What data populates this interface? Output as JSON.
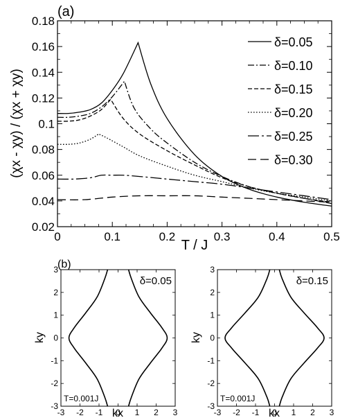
{
  "chart_data": [
    {
      "panel_label": "(a)",
      "type": "line",
      "xlabel": "T / J",
      "ylabel": "(χx - χy) / (χx + χy)",
      "xlim": [
        0,
        0.5
      ],
      "ylim": [
        0.02,
        0.18
      ],
      "xticks": [
        0,
        0.1,
        0.2,
        0.3,
        0.4,
        0.5
      ],
      "xtick_labels": [
        "0",
        "0.1",
        "0.2",
        "0.3",
        "0.4",
        "0.5"
      ],
      "yticks": [
        0.02,
        0.04,
        0.06,
        0.08,
        0.1,
        0.12,
        0.14,
        0.16,
        0.18
      ],
      "ytick_labels": [
        "0.02",
        "0.04",
        "0.06",
        "0.08",
        "0.1",
        "0.12",
        "0.14",
        "0.16",
        "0.18"
      ],
      "legend_position": "top-right",
      "series": [
        {
          "name": "δ=0.05",
          "dash": "solid",
          "x": [
            0,
            0.02,
            0.04,
            0.06,
            0.08,
            0.1,
            0.12,
            0.147,
            0.17,
            0.2,
            0.25,
            0.3,
            0.35,
            0.4,
            0.45,
            0.5
          ],
          "y": [
            0.108,
            0.108,
            0.109,
            0.111,
            0.116,
            0.126,
            0.139,
            0.163,
            0.131,
            0.104,
            0.076,
            0.059,
            0.049,
            0.043,
            0.039,
            0.036
          ]
        },
        {
          "name": "δ=0.10",
          "dash": "dashdot",
          "x": [
            0,
            0.02,
            0.04,
            0.06,
            0.08,
            0.1,
            0.122,
            0.14,
            0.17,
            0.2,
            0.25,
            0.3,
            0.35,
            0.4,
            0.45,
            0.5
          ],
          "y": [
            0.105,
            0.105,
            0.106,
            0.108,
            0.113,
            0.121,
            0.133,
            0.112,
            0.096,
            0.085,
            0.07,
            0.059,
            0.051,
            0.046,
            0.042,
            0.038
          ]
        },
        {
          "name": "δ=0.15",
          "dash": "dash",
          "x": [
            0,
            0.02,
            0.04,
            0.06,
            0.08,
            0.097,
            0.12,
            0.15,
            0.2,
            0.25,
            0.3,
            0.35,
            0.4,
            0.45,
            0.5
          ],
          "y": [
            0.102,
            0.102,
            0.103,
            0.106,
            0.111,
            0.119,
            0.104,
            0.092,
            0.079,
            0.068,
            0.058,
            0.051,
            0.046,
            0.042,
            0.039
          ]
        },
        {
          "name": "δ=0.20",
          "dash": "dot",
          "x": [
            0,
            0.02,
            0.04,
            0.06,
            0.075,
            0.09,
            0.12,
            0.15,
            0.2,
            0.25,
            0.3,
            0.35,
            0.4,
            0.45,
            0.5
          ],
          "y": [
            0.084,
            0.084,
            0.085,
            0.088,
            0.092,
            0.089,
            0.082,
            0.075,
            0.067,
            0.06,
            0.055,
            0.05,
            0.046,
            0.043,
            0.04
          ]
        },
        {
          "name": "δ=0.25",
          "dash": "longdashdot",
          "x": [
            0,
            0.03,
            0.06,
            0.08,
            0.1,
            0.12,
            0.15,
            0.2,
            0.25,
            0.3,
            0.35,
            0.4,
            0.45,
            0.5
          ],
          "y": [
            0.057,
            0.057,
            0.058,
            0.06,
            0.06,
            0.06,
            0.059,
            0.057,
            0.055,
            0.053,
            0.05,
            0.047,
            0.044,
            0.041
          ]
        },
        {
          "name": "δ=0.30",
          "dash": "longdash",
          "x": [
            0,
            0.05,
            0.1,
            0.15,
            0.2,
            0.25,
            0.3,
            0.35,
            0.4,
            0.45,
            0.5
          ],
          "y": [
            0.041,
            0.041,
            0.043,
            0.044,
            0.044,
            0.044,
            0.043,
            0.042,
            0.041,
            0.04,
            0.039
          ]
        }
      ]
    },
    {
      "panel_label": "(b)",
      "type": "line",
      "xlabel": "kx",
      "ylabel": "ky",
      "xlim": [
        -3,
        3
      ],
      "ylim": [
        -3,
        3
      ],
      "xticks": [
        -3,
        -2,
        -1,
        0,
        1,
        2,
        3
      ],
      "yticks": [
        -3,
        -2,
        -1,
        0,
        1,
        2,
        3
      ],
      "annotation_delta": "δ=0.05",
      "annotation_T": "T=0.001J",
      "series": [
        {
          "name": "",
          "x": [
            0.55,
            0.7,
            1.1,
            1.7,
            2.3,
            2.58,
            2.3,
            1.7,
            1.1,
            0.7,
            0.55
          ],
          "y": [
            -3.14,
            -2.6,
            -1.8,
            -1.1,
            -0.45,
            0,
            0.45,
            1.1,
            1.8,
            2.6,
            3.14
          ]
        },
        {
          "name": "",
          "x": [
            -0.55,
            -0.7,
            -1.1,
            -1.7,
            -2.3,
            -2.58,
            -2.3,
            -1.7,
            -1.1,
            -0.7,
            -0.55
          ],
          "y": [
            -3.14,
            -2.6,
            -1.8,
            -1.1,
            -0.45,
            0,
            0.45,
            1.1,
            1.8,
            2.6,
            3.14
          ]
        }
      ]
    },
    {
      "type": "line",
      "xlabel": "kx",
      "ylabel": "ky",
      "xlim": [
        -3,
        3
      ],
      "ylim": [
        -3,
        3
      ],
      "xticks": [
        -3,
        -2,
        -1,
        0,
        1,
        2,
        3
      ],
      "yticks": [
        -3,
        -2,
        -1,
        0,
        1,
        2,
        3
      ],
      "annotation_delta": "δ=0.15",
      "annotation_T": "T=0.001J",
      "series": [
        {
          "name": "",
          "x": [
            0.25,
            0.4,
            0.85,
            1.55,
            2.25,
            2.6,
            2.25,
            1.55,
            0.85,
            0.4,
            0.25
          ],
          "y": [
            -3.14,
            -2.6,
            -1.8,
            -1.1,
            -0.45,
            0,
            0.45,
            1.1,
            1.8,
            2.6,
            3.14
          ]
        },
        {
          "name": "",
          "x": [
            -0.25,
            -0.4,
            -0.85,
            -1.55,
            -2.25,
            -2.6,
            -2.25,
            -1.55,
            -0.85,
            -0.4,
            -0.25
          ],
          "y": [
            -3.14,
            -2.6,
            -1.8,
            -1.1,
            -0.45,
            0,
            0.45,
            1.1,
            1.8,
            2.6,
            3.14
          ]
        }
      ]
    }
  ]
}
